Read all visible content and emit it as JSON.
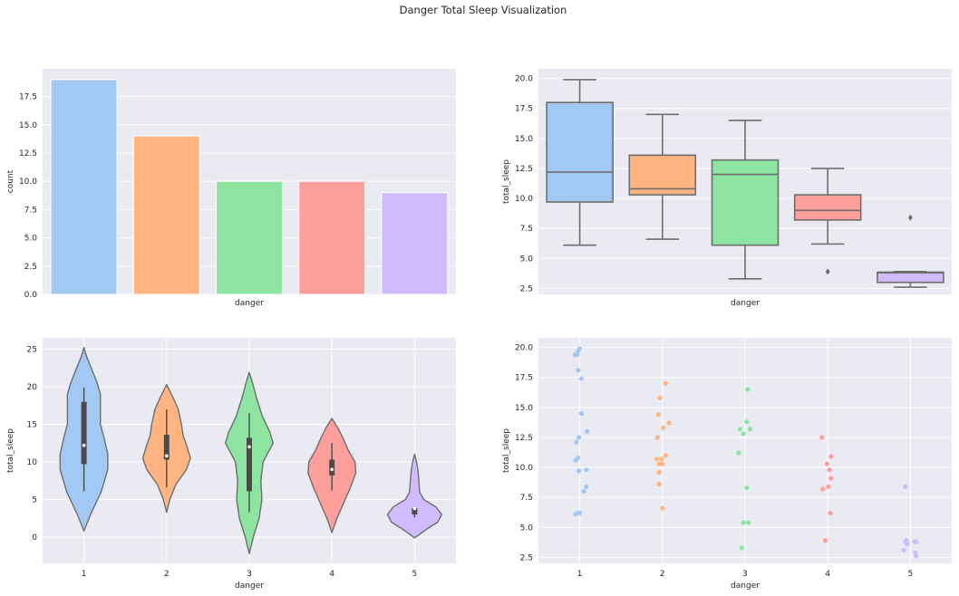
{
  "figure": {
    "suptitle": "Danger Total Sleep Visualization"
  },
  "palette": [
    "#a1c9f4",
    "#ffb482",
    "#8de5a1",
    "#ff9f9b",
    "#d0bbff"
  ],
  "chart_data": [
    {
      "type": "bar",
      "xlabel": "danger",
      "ylabel": "count",
      "categories": [
        "1",
        "2",
        "3",
        "4",
        "5"
      ],
      "show_category_labels": false,
      "values": [
        19,
        14,
        10,
        10,
        9
      ],
      "ylim": [
        0,
        19.95
      ],
      "yticks": [
        "0.0",
        "2.5",
        "5.0",
        "7.5",
        "10.0",
        "12.5",
        "15.0",
        "17.5"
      ],
      "grid": true
    },
    {
      "type": "box",
      "xlabel": "danger",
      "ylabel": "total_sleep",
      "categories": [
        "1",
        "2",
        "3",
        "4",
        "5"
      ],
      "show_category_labels": false,
      "boxes": [
        {
          "whislo": 6.1,
          "q1": 9.7,
          "med": 12.2,
          "q3": 18.0,
          "whishi": 19.9,
          "fliers": []
        },
        {
          "whislo": 6.6,
          "q1": 10.3,
          "med": 10.8,
          "q3": 13.6,
          "whishi": 17.0,
          "fliers": []
        },
        {
          "whislo": 3.3,
          "q1": 6.1,
          "med": 12.0,
          "q3": 13.2,
          "whishi": 16.5,
          "fliers": []
        },
        {
          "whislo": 6.2,
          "q1": 8.2,
          "med": 9.0,
          "q3": 10.3,
          "whishi": 12.5,
          "fliers": [
            3.9
          ]
        },
        {
          "whislo": 2.6,
          "q1": 3.0,
          "med": 3.8,
          "q3": 3.85,
          "whishi": 3.9,
          "fliers": [
            8.4
          ]
        }
      ],
      "ylim": [
        2.0,
        20.8
      ],
      "yticks": [
        "2.5",
        "5.0",
        "7.5",
        "10.0",
        "12.5",
        "15.0",
        "17.5",
        "20.0"
      ],
      "grid": true
    },
    {
      "type": "violin",
      "xlabel": "danger",
      "ylabel": "total_sleep",
      "categories": [
        "1",
        "2",
        "3",
        "4",
        "5"
      ],
      "violins": [
        {
          "ymin": 0.8,
          "ymax": 25.2,
          "profile": [
            [
              0.8,
              0
            ],
            [
              3.0,
              0.2
            ],
            [
              6.0,
              0.52
            ],
            [
              9.0,
              0.72
            ],
            [
              11.0,
              0.72
            ],
            [
              13.0,
              0.62
            ],
            [
              15.0,
              0.5
            ],
            [
              17.0,
              0.5
            ],
            [
              19.0,
              0.5
            ],
            [
              20.5,
              0.4
            ],
            [
              22.5,
              0.22
            ],
            [
              24.0,
              0.08
            ],
            [
              25.2,
              0
            ]
          ],
          "whislo": 6.1,
          "q1": 9.7,
          "med": 12.2,
          "q3": 18.0,
          "whishi": 19.9
        },
        {
          "ymin": 3.3,
          "ymax": 20.3,
          "profile": [
            [
              3.3,
              0
            ],
            [
              5.0,
              0.1
            ],
            [
              7.0,
              0.28
            ],
            [
              9.0,
              0.6
            ],
            [
              10.5,
              0.72
            ],
            [
              12.0,
              0.62
            ],
            [
              13.5,
              0.5
            ],
            [
              15.0,
              0.45
            ],
            [
              17.0,
              0.35
            ],
            [
              18.5,
              0.2
            ],
            [
              20.3,
              0
            ]
          ],
          "whislo": 6.6,
          "q1": 10.3,
          "med": 10.8,
          "q3": 13.6,
          "whishi": 17.0
        },
        {
          "ymin": -2.2,
          "ymax": 21.9,
          "profile": [
            [
              -2.2,
              0
            ],
            [
              0.0,
              0.12
            ],
            [
              2.5,
              0.3
            ],
            [
              5.0,
              0.38
            ],
            [
              7.5,
              0.35
            ],
            [
              10.0,
              0.42
            ],
            [
              12.5,
              0.72
            ],
            [
              14.0,
              0.62
            ],
            [
              16.0,
              0.4
            ],
            [
              18.5,
              0.22
            ],
            [
              20.5,
              0.1
            ],
            [
              21.9,
              0
            ]
          ],
          "whislo": 3.3,
          "q1": 6.1,
          "med": 12.0,
          "q3": 13.2,
          "whishi": 16.5
        },
        {
          "ymin": 0.6,
          "ymax": 15.8,
          "profile": [
            [
              0.6,
              0
            ],
            [
              2.5,
              0.15
            ],
            [
              4.5,
              0.35
            ],
            [
              6.5,
              0.55
            ],
            [
              8.5,
              0.72
            ],
            [
              10.0,
              0.7
            ],
            [
              11.5,
              0.5
            ],
            [
              13.0,
              0.35
            ],
            [
              14.5,
              0.18
            ],
            [
              15.8,
              0
            ]
          ],
          "whislo": 6.2,
          "q1": 8.2,
          "med": 9.0,
          "q3": 10.3,
          "whishi": 12.5
        },
        {
          "ymin": -0.1,
          "ymax": 11.0,
          "profile": [
            [
              -0.1,
              0
            ],
            [
              1.0,
              0.35
            ],
            [
              2.0,
              0.7
            ],
            [
              3.0,
              0.82
            ],
            [
              4.0,
              0.65
            ],
            [
              5.0,
              0.28
            ],
            [
              6.0,
              0.15
            ],
            [
              7.5,
              0.13
            ],
            [
              9.0,
              0.1
            ],
            [
              10.2,
              0.05
            ],
            [
              11.0,
              0
            ]
          ],
          "whislo": 2.6,
          "q1": 3.0,
          "med": 3.8,
          "q3": 3.85,
          "whishi": 3.9
        }
      ],
      "ylim": [
        -3.5,
        26.5
      ],
      "yticks": [
        "0",
        "5",
        "10",
        "15",
        "20",
        "25"
      ],
      "grid": true
    },
    {
      "type": "strip",
      "xlabel": "danger",
      "ylabel": "total_sleep",
      "categories": [
        "1",
        "2",
        "3",
        "4",
        "5"
      ],
      "points": [
        [
          [
            1.0,
            19.9
          ],
          [
            0.98,
            19.7
          ],
          [
            0.94,
            19.4
          ],
          [
            0.97,
            19.4
          ],
          [
            0.98,
            18.1
          ],
          [
            1.02,
            17.4
          ],
          [
            1.02,
            14.5
          ],
          [
            1.09,
            13.0
          ],
          [
            0.99,
            12.5
          ],
          [
            0.96,
            12.1
          ],
          [
            0.98,
            10.8
          ],
          [
            0.95,
            10.6
          ],
          [
            1.08,
            9.8
          ],
          [
            0.99,
            9.7
          ],
          [
            1.08,
            8.4
          ],
          [
            1.05,
            8.0
          ],
          [
            1.0,
            6.2
          ],
          [
            0.95,
            6.1
          ],
          [
            0.98,
            6.2
          ]
        ],
        [
          [
            2.04,
            17.0
          ],
          [
            1.97,
            15.8
          ],
          [
            1.95,
            14.4
          ],
          [
            2.08,
            13.7
          ],
          [
            2.01,
            13.3
          ],
          [
            1.94,
            12.5
          ],
          [
            2.04,
            11.0
          ],
          [
            1.99,
            10.7
          ],
          [
            1.93,
            10.7
          ],
          [
            1.96,
            10.3
          ],
          [
            2.0,
            10.3
          ],
          [
            1.96,
            9.6
          ],
          [
            1.96,
            8.6
          ],
          [
            2.0,
            6.6
          ]
        ],
        [
          [
            3.03,
            16.5
          ],
          [
            3.02,
            13.8
          ],
          [
            2.94,
            13.2
          ],
          [
            3.06,
            13.2
          ],
          [
            2.98,
            12.8
          ],
          [
            2.92,
            11.2
          ],
          [
            3.02,
            8.3
          ],
          [
            2.98,
            5.4
          ],
          [
            3.04,
            5.4
          ],
          [
            2.96,
            3.3
          ]
        ],
        [
          [
            3.93,
            12.5
          ],
          [
            4.04,
            10.9
          ],
          [
            3.99,
            10.3
          ],
          [
            4.02,
            9.8
          ],
          [
            4.04,
            9.1
          ],
          [
            4.01,
            8.4
          ],
          [
            3.94,
            8.2
          ],
          [
            4.03,
            6.2
          ],
          [
            3.97,
            3.9
          ]
        ],
        [
          [
            4.94,
            8.4
          ],
          [
            4.95,
            3.9
          ],
          [
            4.94,
            3.8
          ],
          [
            5.07,
            3.8
          ],
          [
            4.92,
            3.1
          ],
          [
            5.06,
            2.9
          ],
          [
            5.07,
            2.6
          ],
          [
            5.05,
            3.8
          ],
          [
            4.96,
            3.6
          ]
        ]
      ],
      "ylim": [
        2.0,
        20.8
      ],
      "yticks": [
        "2.5",
        "5.0",
        "7.5",
        "10.0",
        "12.5",
        "15.0",
        "17.5",
        "20.0"
      ],
      "grid": true
    }
  ]
}
